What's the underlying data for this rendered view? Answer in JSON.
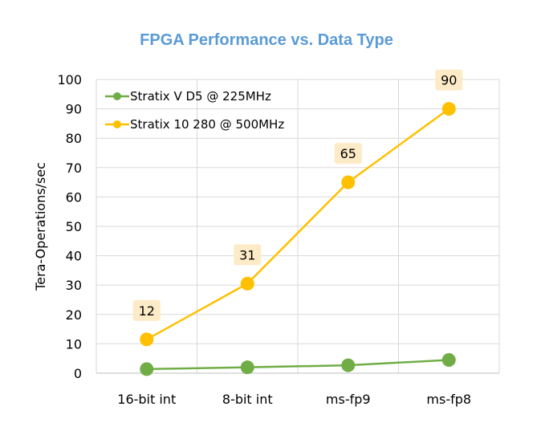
{
  "chart_data": {
    "type": "line",
    "title": "FPGA Performance vs. Data Type",
    "xlabel": "",
    "ylabel": "Tera-Operations/sec",
    "categories": [
      "16-bit int",
      "8-bit int",
      "ms-fp9",
      "ms-fp8"
    ],
    "ylim": [
      0,
      100
    ],
    "yticks": [
      0,
      10,
      20,
      30,
      40,
      50,
      60,
      70,
      80,
      90,
      100
    ],
    "grid": true,
    "legend_position": "top-left",
    "series": [
      {
        "name": "Stratix V D5 @ 225MHz",
        "color": "#70ad47",
        "values": [
          1.4,
          2.0,
          2.7,
          4.5
        ],
        "data_labels": []
      },
      {
        "name": "Stratix 10 280 @ 500MHz",
        "color": "#ffc000",
        "values": [
          11.5,
          30.5,
          65,
          90
        ],
        "data_labels": [
          "12",
          "31",
          "65",
          "90"
        ]
      }
    ],
    "data_label_background": "#fdebc8"
  }
}
